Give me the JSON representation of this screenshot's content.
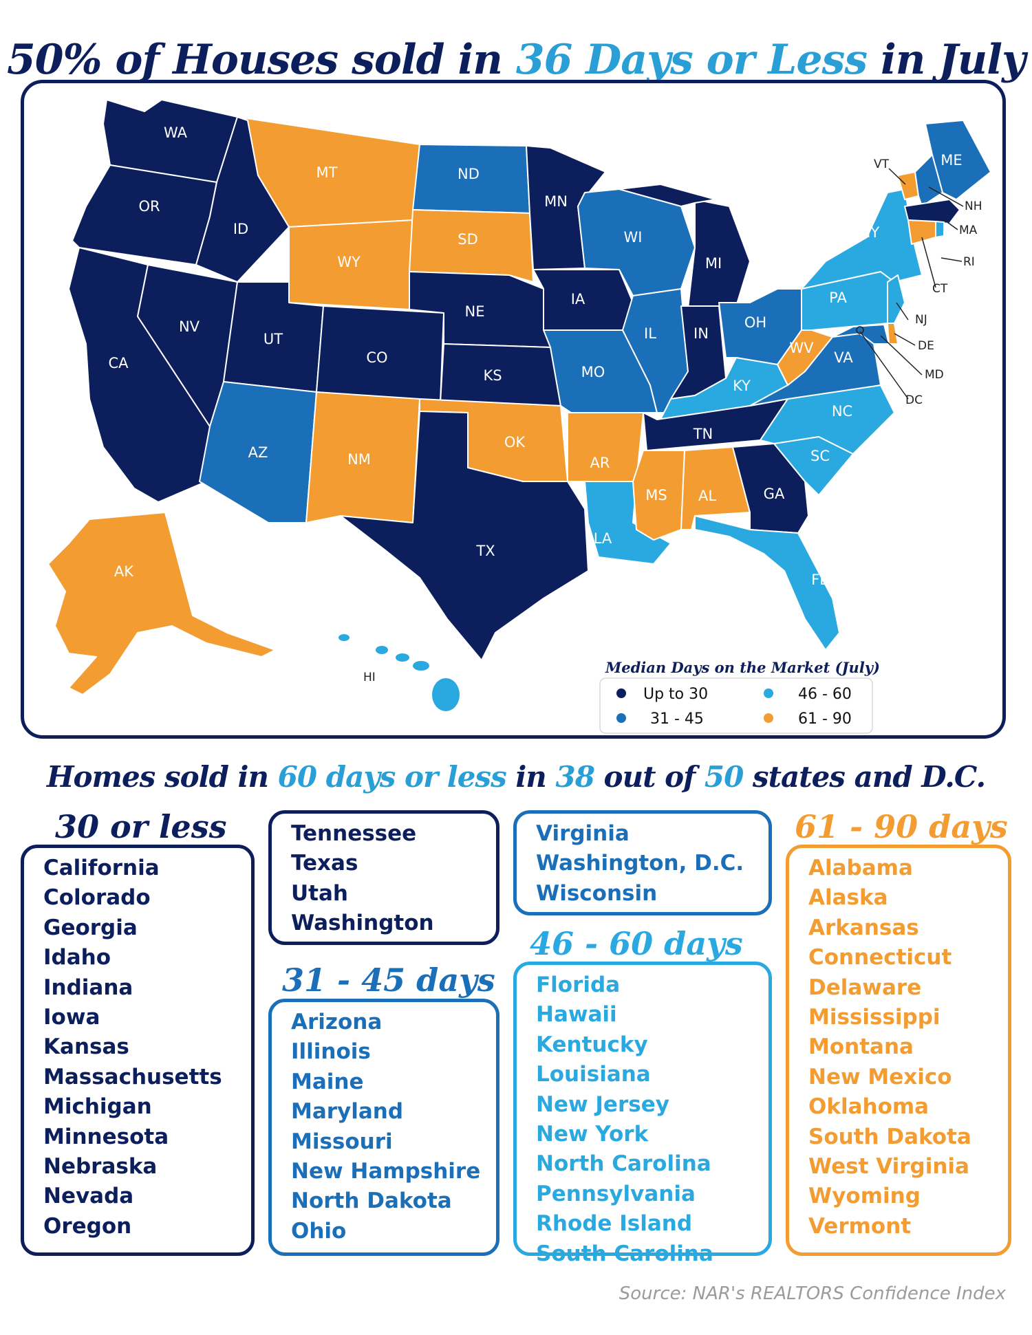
{
  "title": {
    "part1": "50% of Houses sold in ",
    "part2": "36 Days or Less",
    "part3": " in July"
  },
  "colors": {
    "up_to_30": "#0c1f5c",
    "d31_45": "#1b6fb8",
    "d46_60": "#2aa8e0",
    "d61_90": "#f39c32",
    "title_navy": "#0c1f5c",
    "title_highlight": "#2a9fd6"
  },
  "map": {
    "states": [
      "WA",
      "OR",
      "CA",
      "ID",
      "NV",
      "MT",
      "WY",
      "UT",
      "AZ",
      "CO",
      "NM",
      "ND",
      "SD",
      "NE",
      "KS",
      "OK",
      "TX",
      "MN",
      "IA",
      "MO",
      "AR",
      "LA",
      "WI",
      "IL",
      "MI",
      "IN",
      "OH",
      "KY",
      "TN",
      "MS",
      "AL",
      "GA",
      "FL",
      "SC",
      "NC",
      "VA",
      "WV",
      "PA",
      "NY",
      "ME",
      "AK",
      "HI",
      "VT",
      "NH",
      "MA",
      "RI",
      "CT",
      "NJ",
      "DE",
      "MD",
      "DC"
    ],
    "legend": {
      "title": "Median Days on the Market (July)",
      "items": [
        {
          "label": "Up to 30",
          "color": "#0c1f5c"
        },
        {
          "label": "31 - 45",
          "color": "#1b6fb8"
        },
        {
          "label": "46 - 60",
          "color": "#2aa8e0"
        },
        {
          "label": "61 - 90",
          "color": "#f39c32"
        }
      ]
    }
  },
  "subtitle": {
    "p1": "Homes sold in ",
    "p2": "60 days or less",
    "p3": " in ",
    "p4": "38",
    "p5": " out of ",
    "p6": "50",
    "p7": " states and D.C."
  },
  "categories": {
    "c30": {
      "title": "30 or less",
      "box1": [
        "California",
        "Colorado",
        "Georgia",
        "Idaho",
        "Indiana",
        "Iowa",
        "Kansas",
        "Massachusetts",
        "Michigan",
        "Minnesota",
        "Nebraska",
        "Nevada",
        "Oregon"
      ],
      "box2": [
        "Tennessee",
        "Texas",
        "Utah",
        "Washington"
      ]
    },
    "c31": {
      "title": "31 - 45 days",
      "box1": [
        "Arizona",
        "Illinois",
        "Maine",
        "Maryland",
        "Missouri",
        "New Hampshire",
        "North Dakota",
        "Ohio"
      ],
      "box2": [
        "Virginia",
        "Washington, D.C.",
        "Wisconsin"
      ]
    },
    "c46": {
      "title": "46 - 60 days",
      "box1": [
        "Florida",
        "Hawaii",
        "Kentucky",
        "Louisiana",
        "New Jersey",
        "New York",
        "North Carolina",
        "Pennsylvania",
        "Rhode Island",
        "South Carolina"
      ]
    },
    "c61": {
      "title": "61 - 90 days",
      "box1": [
        "Alabama",
        "Alaska",
        "Arkansas",
        "Connecticut",
        "Delaware",
        "Mississippi",
        "Montana",
        "New Mexico",
        "Oklahoma",
        "South Dakota",
        "West Virginia",
        "Wyoming",
        "Vermont"
      ]
    }
  },
  "source": "Source: NAR's REALTORS Confidence Index"
}
